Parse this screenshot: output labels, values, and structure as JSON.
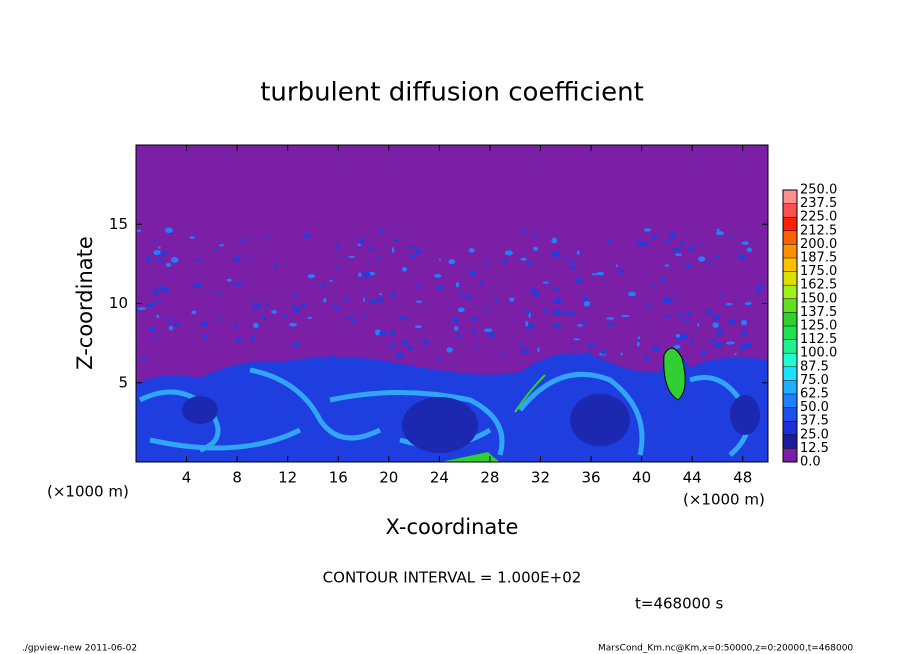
{
  "chart_data": {
    "type": "contour",
    "title": "turbulent diffusion coefficient",
    "xlabel": "X-coordinate",
    "ylabel": "Z-coordinate",
    "xunit": "(×1000 m)",
    "yunit": "(×1000 m)",
    "xlim": [
      0,
      50
    ],
    "xticks": [
      4,
      8,
      12,
      16,
      20,
      24,
      28,
      32,
      36,
      40,
      44,
      48
    ],
    "ylim": [
      0,
      20
    ],
    "yticks": [
      5,
      10,
      15
    ],
    "contour_interval": "CONTOUR INTERVAL = 1.000E+02",
    "time": "t=468000 s",
    "footer_left": "./gpview-new   2011-06-02",
    "footer_right": "MarsCond_Km.nc@Km,x=0:50000,z=0:20000,t=468000",
    "colorbar": {
      "levels": [
        {
          "value": 0,
          "label": "0.0"
        },
        {
          "value": 12.5,
          "label": "12.5"
        },
        {
          "value": 25,
          "label": "25.0"
        },
        {
          "value": 37.5,
          "label": "37.5"
        },
        {
          "value": 50,
          "label": "50.0"
        },
        {
          "value": 62.5,
          "label": "62.5"
        },
        {
          "value": 75,
          "label": "75.0"
        },
        {
          "value": 87.5,
          "label": "87.5"
        },
        {
          "value": 100,
          "label": "100.0"
        },
        {
          "value": 112.5,
          "label": "112.5"
        },
        {
          "value": 125,
          "label": "125.0"
        },
        {
          "value": 137.5,
          "label": "137.5"
        },
        {
          "value": 150,
          "label": "150.0"
        },
        {
          "value": 162.5,
          "label": "162.5"
        },
        {
          "value": 175,
          "label": "175.0"
        },
        {
          "value": 187.5,
          "label": "187.5"
        },
        {
          "value": 200,
          "label": "200.0"
        },
        {
          "value": 212.5,
          "label": "212.5"
        },
        {
          "value": 225,
          "label": "225.0"
        },
        {
          "value": 237.5,
          "label": "237.5"
        },
        {
          "value": 250,
          "label": "250.0"
        }
      ],
      "colors": [
        "#7a1fa6",
        "#1c1c9c",
        "#1e2ed8",
        "#1e50f0",
        "#1e80ff",
        "#20b0ff",
        "#20e0ff",
        "#20ffd0",
        "#20f090",
        "#20e050",
        "#30d030",
        "#60e020",
        "#a0f020",
        "#e0e000",
        "#ffc000",
        "#ff9000",
        "#ff6000",
        "#ff2000",
        "#ff5050",
        "#ff9090"
      ]
    }
  }
}
